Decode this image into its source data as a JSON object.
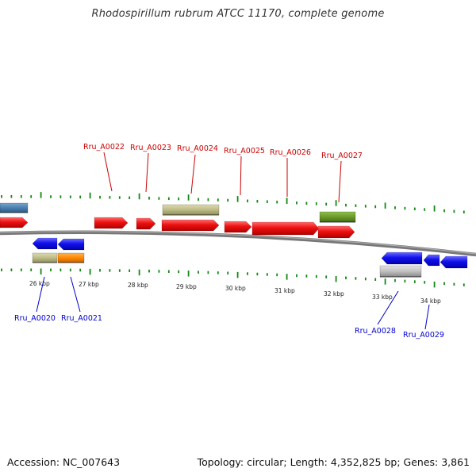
{
  "title": "Rhodospirillum rubrum ATCC 11170, complete genome",
  "footer": {
    "accession": "Accession: NC_007643",
    "genome_info": "Topology: circular; Length: 4,352,825 bp; Genes: 3,861"
  },
  "colors": {
    "forward_label": "#cc0000",
    "reverse_label": "#0000cc",
    "cds": "#ee1111",
    "cds_reverse": "#1111ee",
    "rna": "#bdbb85",
    "orange_feature": "#ff8800",
    "green_feature": "#6a9a2a",
    "gray_feature": "#c0c0c0",
    "steelblue_feature": "#4a7fb0",
    "axis": "#777777",
    "ticks": "#118811"
  },
  "kbp_ticks": [
    "26 kbp",
    "27 kbp",
    "28 kbp",
    "29 kbp",
    "30 kbp",
    "31 kbp",
    "32 kbp",
    "33 kbp",
    "34 kbp"
  ],
  "forward_genes": [
    {
      "name": "Rru_A0022"
    },
    {
      "name": "Rru_A0023"
    },
    {
      "name": "Rru_A0024"
    },
    {
      "name": "Rru_A0025"
    },
    {
      "name": "Rru_A0026"
    },
    {
      "name": "Rru_A0027"
    }
  ],
  "reverse_genes": [
    {
      "name": "Rru_A0020"
    },
    {
      "name": "Rru_A0021"
    },
    {
      "name": "Rru_A0028"
    },
    {
      "name": "Rru_A0029"
    }
  ]
}
